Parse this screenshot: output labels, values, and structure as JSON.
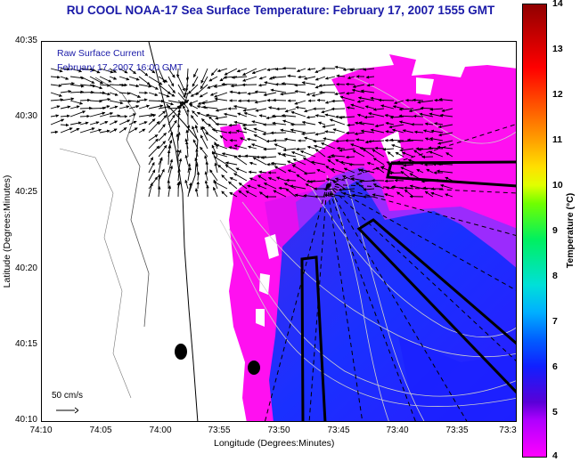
{
  "title": "RU COOL  NOAA-17  Sea Surface Temperature:  February 17, 2007 1555 GMT",
  "overlay": {
    "line1": "Raw Surface Current",
    "line2": "February 17, 2007 16:00 GMT"
  },
  "scale": {
    "label": "50 cm/s"
  },
  "axes": {
    "y_title": "Latitude (Degrees:Minutes)",
    "x_title": "Longitude (Degrees:Minutes)",
    "y_ticks": [
      "40:35",
      "40:30",
      "40:25",
      "40:20",
      "40:15",
      "40:10"
    ],
    "x_ticks": [
      "74:10",
      "74:05",
      "74:00",
      "73:55",
      "73:50",
      "73:45",
      "73:40",
      "73:35",
      "73:3"
    ]
  },
  "colorbar": {
    "title": "Temperature (°C)",
    "ticks": [
      "14",
      "13",
      "12",
      "11",
      "10",
      "9",
      "8",
      "7",
      "6",
      "5",
      "4"
    ],
    "range": [
      4,
      14
    ]
  },
  "colors": {
    "title": "#1a1aa8",
    "magenta_warm": "#ff10f0",
    "blue_cold": "#1a30ff",
    "violet": "#7030ff"
  }
}
